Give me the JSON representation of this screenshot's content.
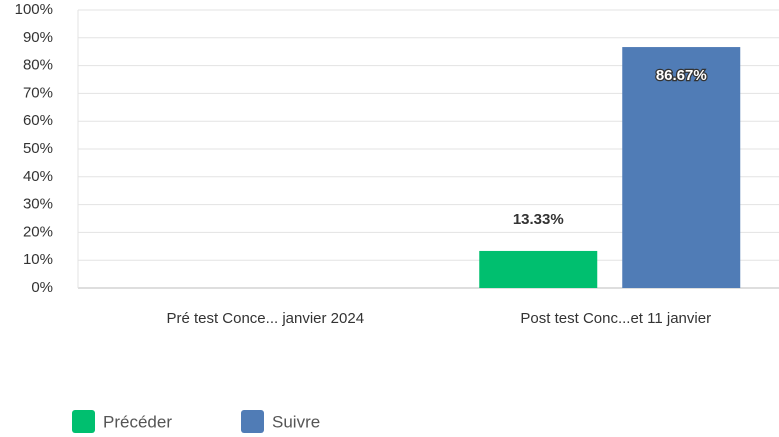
{
  "chart_data": {
    "type": "bar",
    "categories": [
      "Pré test Conce... janvier 2024",
      "Post test Conc...et 11 janvier"
    ],
    "series": [
      {
        "name": "Précéder",
        "color": "#00bf6f",
        "values": [
          null,
          13.33
        ],
        "value_labels": [
          null,
          "13.33%"
        ]
      },
      {
        "name": "Suivre",
        "color": "#507cb6",
        "values": [
          null,
          86.67
        ],
        "value_labels": [
          null,
          "86.67%"
        ]
      }
    ],
    "ylim": [
      0,
      100
    ],
    "yticks": [
      {
        "value": 0,
        "label": "0%"
      },
      {
        "value": 10,
        "label": "10%"
      },
      {
        "value": 20,
        "label": "20%"
      },
      {
        "value": 30,
        "label": "30%"
      },
      {
        "value": 40,
        "label": "40%"
      },
      {
        "value": 50,
        "label": "50%"
      },
      {
        "value": 60,
        "label": "60%"
      },
      {
        "value": 70,
        "label": "70%"
      },
      {
        "value": 80,
        "label": "80%"
      },
      {
        "value": 90,
        "label": "90%"
      },
      {
        "value": 100,
        "label": "100%"
      }
    ],
    "grid": true,
    "legend": "bottom-left"
  }
}
